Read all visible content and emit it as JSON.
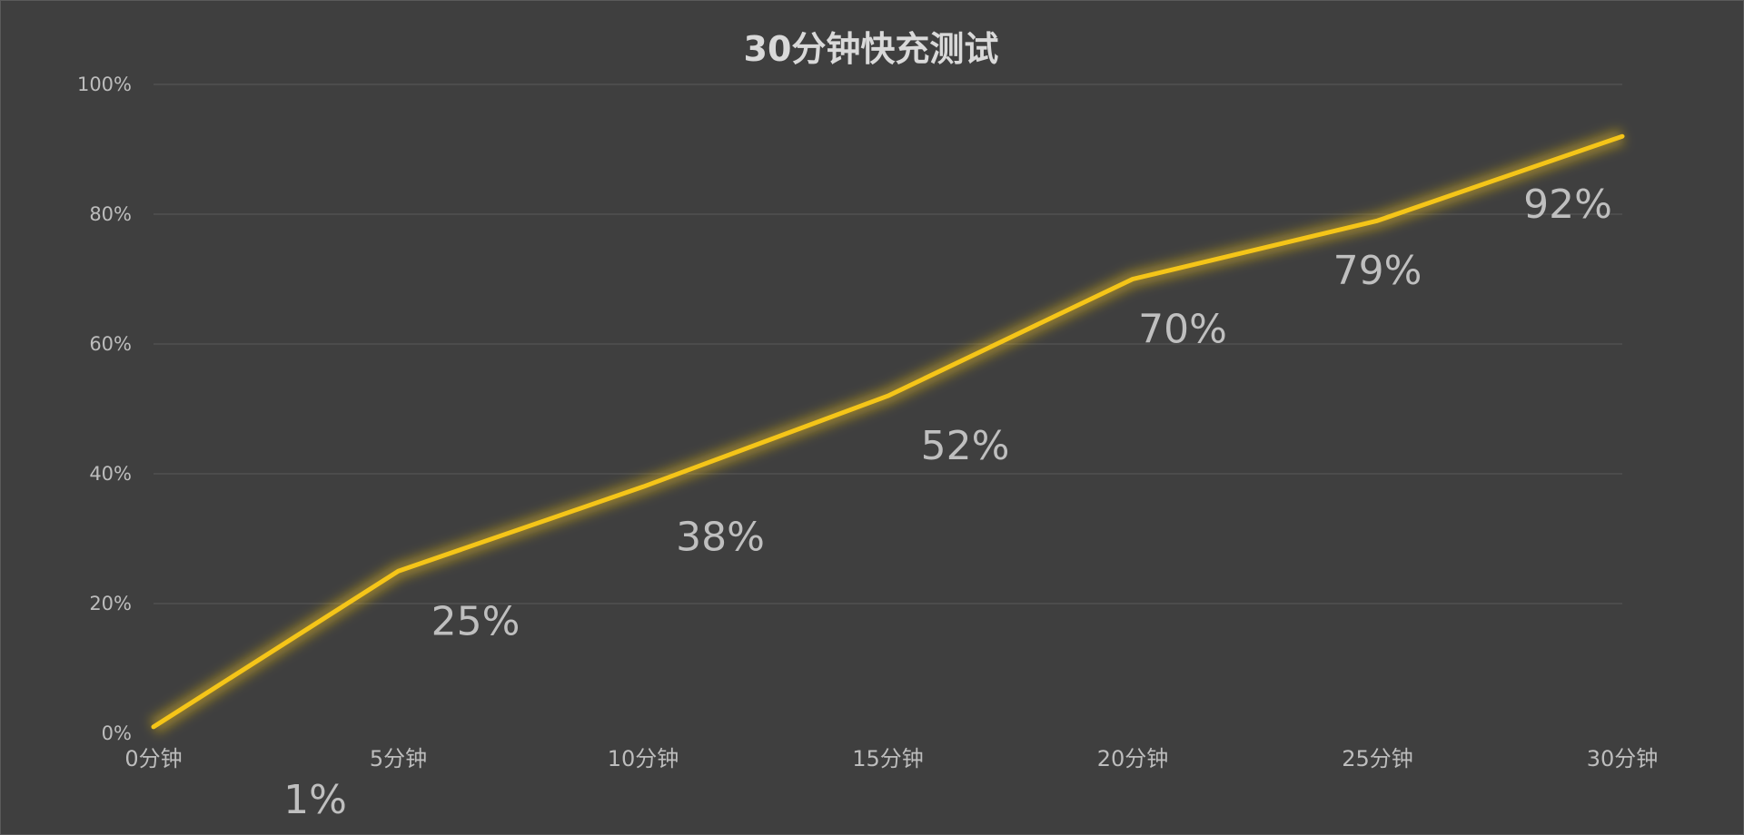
{
  "chart_data": {
    "type": "line",
    "title": "30分钟快充测试",
    "categories": [
      "0分钟",
      "5分钟",
      "10分钟",
      "15分钟",
      "20分钟",
      "25分钟",
      "30分钟"
    ],
    "series": [
      {
        "values": [
          1,
          25,
          38,
          52,
          70,
          79,
          92
        ],
        "data_labels": [
          "1%",
          "25%",
          "38%",
          "52%",
          "70%",
          "79%",
          "92%"
        ],
        "color": "#f5c518"
      }
    ],
    "y_ticks": [
      "0%",
      "20%",
      "40%",
      "60%",
      "80%",
      "100%"
    ],
    "ylim": [
      0,
      100
    ],
    "grid": true,
    "legend": "none",
    "background_color": "#3f3f3f"
  }
}
